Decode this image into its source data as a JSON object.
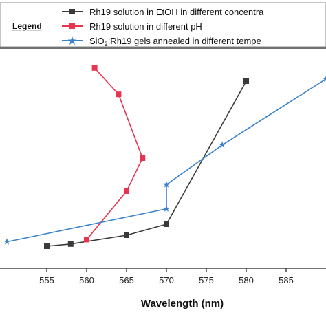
{
  "chart_data": {
    "type": "line",
    "xlabel": "Wavelength (nm)",
    "ylabel": "",
    "legend_title": "Legend",
    "legend_placement": "top",
    "xlim": [
      550,
      590
    ],
    "ylim": [
      0,
      100
    ],
    "x_ticks": [
      555,
      560,
      565,
      570,
      575,
      580,
      585
    ],
    "grid": false,
    "series": [
      {
        "name": "Rh19 solution in EtOH in different concentra",
        "color": "#3a3a3a",
        "marker": "square",
        "x": [
          555,
          558,
          565,
          570,
          580
        ],
        "y": [
          10,
          11,
          15,
          20,
          85
        ]
      },
      {
        "name": "Rh19 solution in different pH",
        "color": "#e8354f",
        "marker": "square",
        "x": [
          560,
          565,
          567,
          564,
          561
        ],
        "y": [
          13,
          35,
          50,
          79,
          91
        ]
      },
      {
        "name_prefix": "SiO",
        "name_subscript": "2",
        "name_suffix": ":Rh19 gels annealed in different tempe",
        "name": "SiO2:Rh19 gels annealed in different tempe",
        "color": "#3b82c9",
        "marker": "star",
        "x": [
          550,
          570,
          570,
          577,
          590
        ],
        "y": [
          12,
          27,
          38,
          56,
          86
        ]
      }
    ]
  }
}
